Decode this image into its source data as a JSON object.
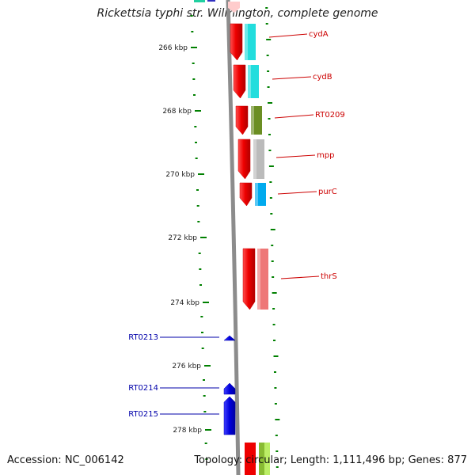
{
  "title": "Rickettsia typhi str. Wilmington, complete genome",
  "accession": "Accession: NC_006142",
  "summary": "Topology: circular; Length: 1,111,496 bp; Genes: 877",
  "colors": {
    "forward_cds": "#ee0000",
    "reverse_cds": "#0000dd",
    "tick": "#008000",
    "backbone": "#8c8c8c",
    "label_forward": "#cc0000",
    "label_reverse": "#0000aa"
  },
  "scale_labels": [
    "266 kbp",
    "268 kbp",
    "270 kbp",
    "272 kbp",
    "274 kbp",
    "276 kbp",
    "278 kbp"
  ],
  "forward_genes": [
    {
      "name": "cydA",
      "cog_color": "#22dddd"
    },
    {
      "name": "cydB",
      "cog_color": "#22dddd"
    },
    {
      "name": "RT0209",
      "cog_color": "#6b8e23"
    },
    {
      "name": "mpp",
      "cog_color": "#bbbbbb"
    },
    {
      "name": "purC",
      "cog_color": "#00aaee"
    },
    {
      "name": "thrS",
      "cog_color": "#ee7777"
    }
  ],
  "reverse_genes": [
    {
      "name": "RT0213"
    },
    {
      "name": "RT0214"
    },
    {
      "name": "RT0215"
    }
  ]
}
